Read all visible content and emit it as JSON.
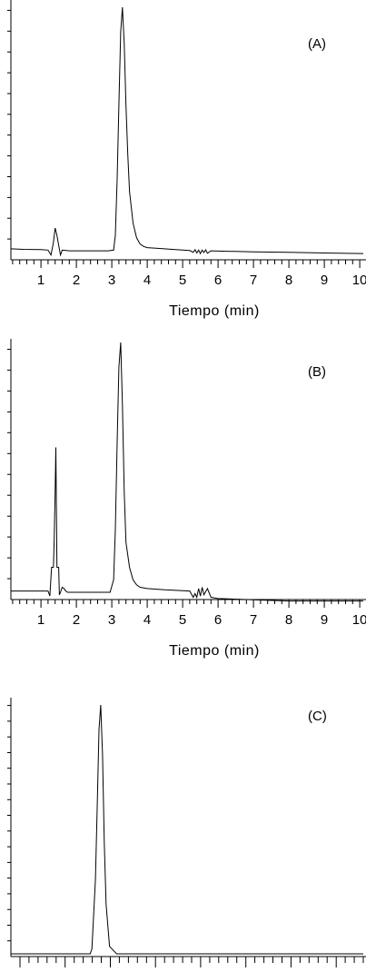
{
  "chart_data": [
    {
      "type": "line",
      "panel_label": "(A)",
      "xlabel": "Tiempo (min)",
      "title": "",
      "ylabel": "",
      "xlim": [
        0.15,
        10.1
      ],
      "ylim": [
        -0.02,
        1.03
      ],
      "x_ticks": [
        "1",
        "2",
        "3",
        "4",
        "5",
        "6",
        "7",
        "8",
        "9",
        "10"
      ],
      "series": [
        {
          "x": [
            0.15,
            0.5,
            1.0,
            1.2,
            1.28,
            1.35,
            1.4,
            1.45,
            1.5,
            1.55,
            1.6,
            1.8,
            2.3,
            2.9,
            3.05,
            3.1,
            3.15,
            3.2,
            3.25,
            3.3,
            3.35,
            3.4,
            3.45,
            3.5,
            3.6,
            3.7,
            3.8,
            3.9,
            4.0,
            4.3,
            4.8,
            5.2,
            5.3,
            5.35,
            5.4,
            5.45,
            5.5,
            5.55,
            5.6,
            5.65,
            5.7,
            5.8,
            6.0,
            7.0,
            8.0,
            9.0,
            10.1
          ],
          "y": [
            0.015,
            0.013,
            0.012,
            0.01,
            -0.01,
            0.04,
            0.1,
            0.07,
            0.03,
            -0.01,
            0.01,
            0.007,
            0.007,
            0.007,
            0.01,
            0.07,
            0.3,
            0.6,
            0.9,
            1.0,
            0.85,
            0.6,
            0.4,
            0.25,
            0.12,
            0.06,
            0.035,
            0.025,
            0.02,
            0.017,
            0.012,
            0.008,
            0.001,
            0.012,
            -0.002,
            0.01,
            -0.004,
            0.01,
            0.0,
            0.011,
            -0.003,
            0.007,
            0.006,
            0.003,
            0.001,
            -0.002,
            -0.004
          ]
        }
      ]
    },
    {
      "type": "line",
      "panel_label": "(B)",
      "xlabel": "Tiempo (min)",
      "title": "",
      "ylabel": "",
      "xlim": [
        0.15,
        10.1
      ],
      "ylim": [
        -0.05,
        1.03
      ],
      "x_ticks": [
        "1",
        "2",
        "3",
        "4",
        "5",
        "6",
        "7",
        "8",
        "9",
        "10"
      ],
      "series": [
        {
          "x": [
            0.15,
            0.5,
            1.0,
            1.2,
            1.25,
            1.3,
            1.35,
            1.37,
            1.4,
            1.42,
            1.45,
            1.5,
            1.52,
            1.55,
            1.6,
            1.65,
            1.7,
            1.75,
            1.8,
            2.3,
            2.95,
            3.05,
            3.1,
            3.15,
            3.2,
            3.25,
            3.3,
            3.35,
            3.4,
            3.5,
            3.6,
            3.7,
            3.8,
            4.0,
            4.5,
            5.2,
            5.3,
            5.35,
            5.4,
            5.45,
            5.5,
            5.55,
            5.6,
            5.7,
            5.8,
            6.0,
            7.0,
            8.0,
            9.0,
            10.1
          ],
          "y": [
            0.005,
            0.005,
            0.005,
            0.005,
            -0.015,
            0.1,
            0.1,
            0.2,
            0.4,
            0.58,
            0.1,
            0.1,
            -0.01,
            0.0,
            0.02,
            0.015,
            0.005,
            0.0,
            0.0,
            0.0,
            0.0,
            0.05,
            0.25,
            0.6,
            0.9,
            1.0,
            0.75,
            0.4,
            0.2,
            0.1,
            0.05,
            0.03,
            0.02,
            0.015,
            0.01,
            0.005,
            -0.02,
            -0.005,
            -0.02,
            0.015,
            -0.015,
            0.02,
            -0.01,
            0.015,
            -0.02,
            -0.025,
            -0.03,
            -0.035,
            -0.035,
            -0.035
          ]
        }
      ]
    },
    {
      "type": "line",
      "panel_label": "(C)",
      "xlabel": "",
      "title": "",
      "ylabel": "",
      "xlim": [
        0.0,
        1.0
      ],
      "ylim": [
        -0.01,
        1.05
      ],
      "x_ticks": [],
      "series": [
        {
          "x": [
            0.0,
            0.1,
            0.2,
            0.225,
            0.23,
            0.24,
            0.245,
            0.25,
            0.255,
            0.26,
            0.265,
            0.27,
            0.28,
            0.3,
            1.0
          ],
          "y": [
            0.0,
            0.0,
            0.0,
            0.0,
            0.02,
            0.3,
            0.6,
            0.9,
            1.0,
            0.8,
            0.45,
            0.2,
            0.03,
            0.0,
            0.0
          ]
        }
      ]
    }
  ]
}
